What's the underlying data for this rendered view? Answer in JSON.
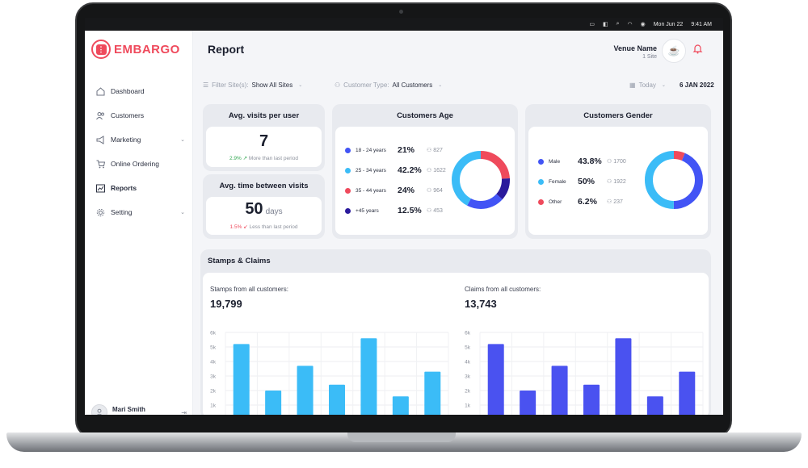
{
  "menubar": {
    "date": "Mon Jun 22",
    "time": "9:41 AM"
  },
  "brand": {
    "name": "EMBARGO",
    "color": "#ef4a5c"
  },
  "sidebar": {
    "items": [
      {
        "label": "Dashboard",
        "icon": "home-icon"
      },
      {
        "label": "Customers",
        "icon": "users-icon"
      },
      {
        "label": "Marketing",
        "icon": "megaphone-icon",
        "expandable": true
      },
      {
        "label": "Online Ordering",
        "icon": "cart-icon"
      },
      {
        "label": "Reports",
        "icon": "report-icon",
        "active": true
      },
      {
        "label": "Setting",
        "icon": "gear-icon",
        "expandable": true
      }
    ],
    "user": {
      "name": "Mari Smith"
    }
  },
  "header": {
    "title": "Report",
    "venue_name": "Venue Name",
    "venue_sites": "1 Site"
  },
  "filters": {
    "site_label": "Filter Site(s):",
    "site_value": "Show All Sites",
    "customer_label": "Customer Type:",
    "customer_value": "All Customers",
    "period_value": "Today",
    "date_value": "6 JAN 2022"
  },
  "avg_visits": {
    "title": "Avg. visits per user",
    "value": "7",
    "change": "2.9%",
    "note": "More than last period"
  },
  "avg_time": {
    "title": "Avg. time between visits",
    "value": "50",
    "unit": "days",
    "change": "1.5%",
    "note": "Less than last period"
  },
  "customers_age": {
    "title": "Customers Age",
    "groups": [
      {
        "label": "18 - 24 years",
        "pct": "21%",
        "count": "827",
        "color": "#4254f5",
        "share": 21
      },
      {
        "label": "25 - 34 years",
        "pct": "42.2%",
        "count": "1622",
        "color": "#3bbcf7",
        "share": 42.2
      },
      {
        "label": "35 - 44 years",
        "pct": "24%",
        "count": "964",
        "color": "#ef4a5c",
        "share": 24
      },
      {
        "label": "+45  years",
        "pct": "12.5%",
        "count": "453",
        "color": "#2a1a9c",
        "share": 12.5
      }
    ]
  },
  "customers_gender": {
    "title": "Customers Gender",
    "groups": [
      {
        "label": "Male",
        "pct": "43.8%",
        "count": "1700",
        "color": "#4254f5",
        "share": 43.8
      },
      {
        "label": "Female",
        "pct": "50%",
        "count": "1922",
        "color": "#3bbcf7",
        "share": 50
      },
      {
        "label": "Other",
        "pct": "6.2%",
        "count": "237",
        "color": "#ef4a5c",
        "share": 6.2
      }
    ]
  },
  "stamps_claims": {
    "title": "Stamps & Claims",
    "stamps_label": "Stamps from all customers:",
    "stamps_total": "19,799",
    "claims_label": "Claims from all customers:",
    "claims_total": "13,743"
  },
  "chart_data": [
    {
      "type": "bar",
      "title": "Stamps from all customers:",
      "ytick_labels": [
        "6k",
        "5k",
        "4k",
        "3k",
        "2k",
        "1k"
      ],
      "yticks": [
        6000,
        5000,
        4000,
        3000,
        2000,
        1000
      ],
      "ylim": [
        0,
        6000
      ],
      "values": [
        5200,
        2000,
        3700,
        2400,
        5600,
        1600,
        3300
      ],
      "color": "#3bbcf7",
      "grid": true
    },
    {
      "type": "bar",
      "title": "Claims from all customers:",
      "ytick_labels": [
        "6k",
        "5k",
        "4k",
        "3k",
        "2k",
        "1k"
      ],
      "yticks": [
        6000,
        5000,
        4000,
        3000,
        2000,
        1000
      ],
      "ylim": [
        0,
        6000
      ],
      "values": [
        5200,
        2000,
        3700,
        2400,
        5600,
        1600,
        3300
      ],
      "color": "#4a52f0",
      "grid": true
    }
  ]
}
